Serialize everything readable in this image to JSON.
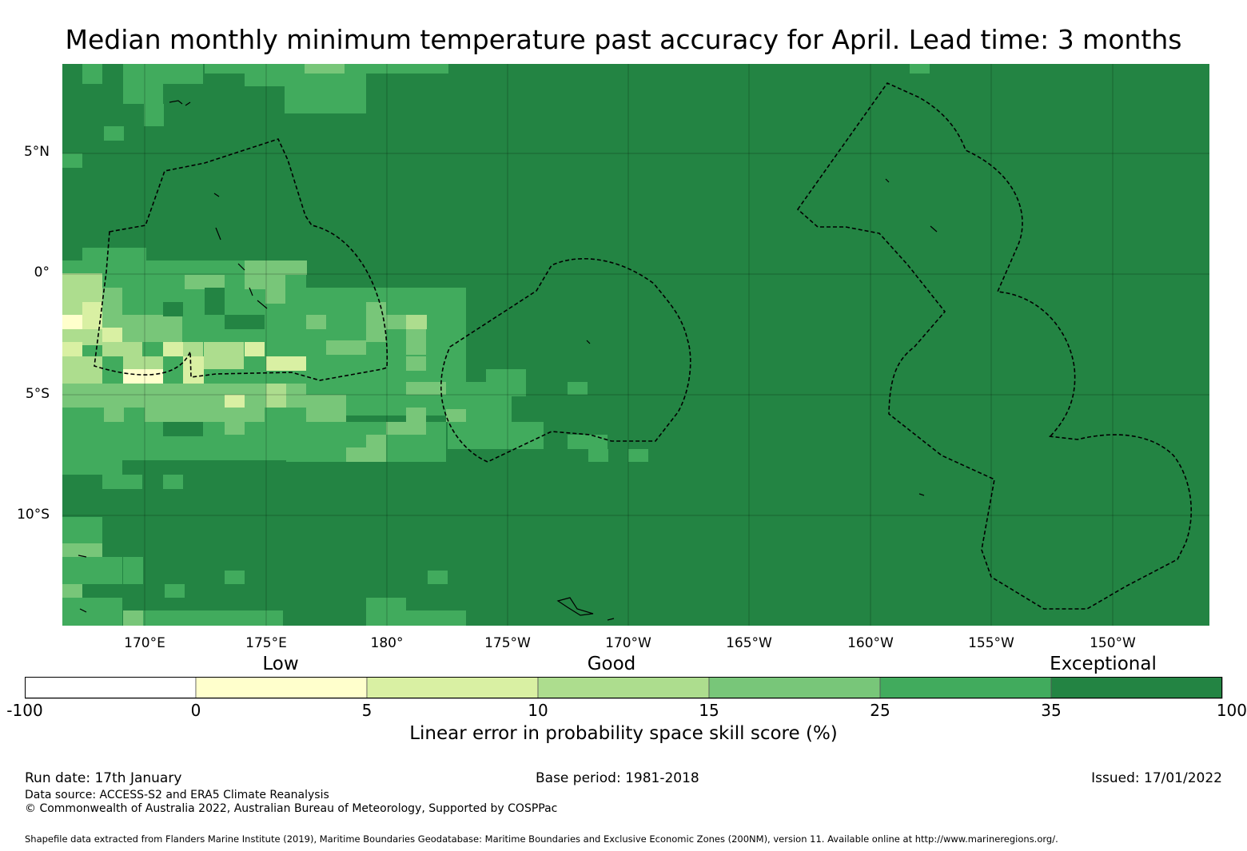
{
  "title": "Median monthly minimum temperature past accuracy for April. Lead time: 3 months",
  "map": {
    "lat_ticks": [
      "5°N",
      "0°",
      "5°S",
      "10°S"
    ],
    "lon_ticks": [
      "170°E",
      "175°E",
      "180°",
      "175°W",
      "170°W",
      "165°W",
      "160°W",
      "155°W",
      "150°W"
    ],
    "background_color": "#238443"
  },
  "colorbar": {
    "categories": [
      "Low",
      "Good",
      "Exceptional"
    ],
    "ticks": [
      "-100",
      "0",
      "5",
      "10",
      "15",
      "25",
      "35",
      "100"
    ],
    "colors": [
      "#ffffff",
      "#ffffcc",
      "#d9f0a3",
      "#addd8e",
      "#78c679",
      "#41ab5d",
      "#238443"
    ],
    "label": "Linear error in probability space skill score (%)"
  },
  "footer": {
    "run_date": "Run date: 17th January",
    "base_period": "Base period: 1981-2018",
    "issued": "Issued: 17/01/2022",
    "data_source": "Data source: ACCESS-S2 and ERA5 Climate Reanalysis",
    "copyright": "© Commonwealth of Australia 2022, Australian Bureau of Meteorology, Supported by COSPPac",
    "shapefile": "Shapefile data extracted from Flanders Marine Institute (2019), Maritime Boundaries Geodatabase: Maritime Boundaries and Exclusive Economic Zones (200NM), version 11. Available online at http://www.marineregions.org/."
  }
}
